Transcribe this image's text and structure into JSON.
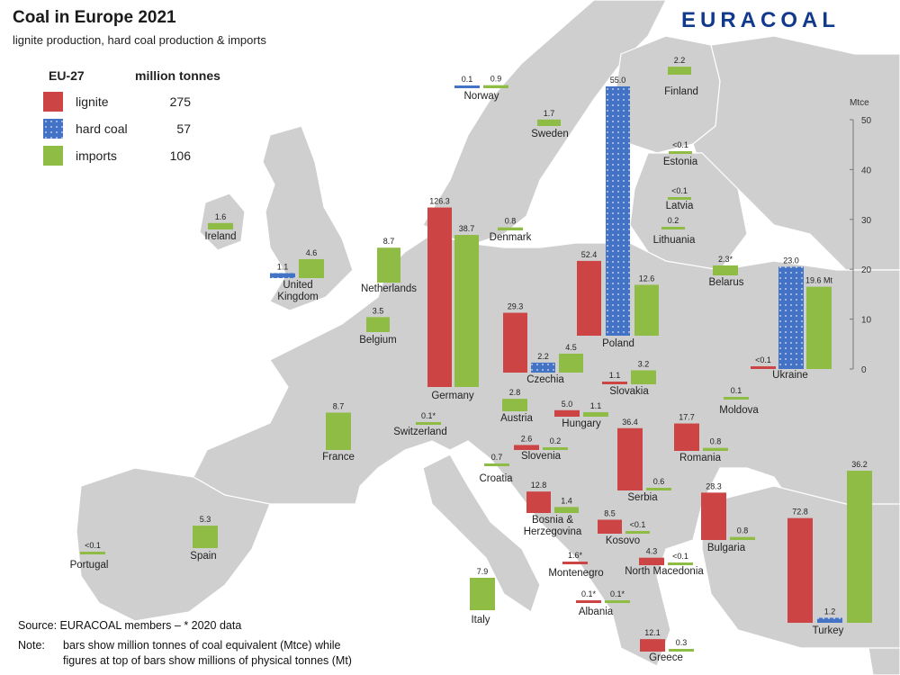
{
  "title": "Coal in Europe 2021",
  "subtitle": "lignite production, hard coal production & imports",
  "brand": "EURACOAL",
  "legend": {
    "region": "EU-27",
    "unit": "million tonnes",
    "items": [
      {
        "label": "lignite",
        "value": "275",
        "color": "#cc4444"
      },
      {
        "label": "hard coal",
        "value": "57",
        "color": "#4472c4"
      },
      {
        "label": "imports",
        "value": "106",
        "color": "#8fbc45"
      }
    ]
  },
  "scale": {
    "unit": "Mtce",
    "ticks": [
      0,
      10,
      20,
      30,
      40,
      50
    ],
    "max": 50
  },
  "colors": {
    "lignite": "#cc4444",
    "hard_coal": "#4472c4",
    "imports": "#8fbc45",
    "land": "#cfcfcf",
    "sea": "#ffffff"
  },
  "source": "Source: EURACOAL members  –  * 2020 data",
  "note_label": "Note:",
  "note_text_1": "bars show million tonnes of coal equivalent (Mtce) while",
  "note_text_2": "figures at top of bars show millions of physical tonnes (Mt)",
  "chart_data": {
    "type": "bar",
    "unit": "Mtce",
    "ylim": [
      0,
      50
    ],
    "countries": [
      {
        "name": [
          "Norway"
        ],
        "bars": [
          {
            "type": "hard_coal",
            "label": "0.1",
            "value": 0.1
          },
          {
            "type": "imports",
            "label": "0.9",
            "value": 0.6
          }
        ]
      },
      {
        "name": [
          "Finland"
        ],
        "bars": [
          {
            "type": "imports",
            "label": "2.2",
            "value": 1.6
          }
        ]
      },
      {
        "name": [
          "Sweden"
        ],
        "bars": [
          {
            "type": "imports",
            "label": "1.7",
            "value": 1.3
          }
        ]
      },
      {
        "name": [
          "Estonia"
        ],
        "bars": [
          {
            "type": "imports",
            "label": "<0.1",
            "value": 0.05
          }
        ]
      },
      {
        "name": [
          "Latvia"
        ],
        "bars": [
          {
            "type": "imports",
            "label": "<0.1",
            "value": 0.05
          }
        ]
      },
      {
        "name": [
          "Lithuania"
        ],
        "bars": [
          {
            "type": "imports",
            "label": "0.2",
            "value": 0.1
          }
        ]
      },
      {
        "name": [
          "Denmark"
        ],
        "bars": [
          {
            "type": "imports",
            "label": "0.8",
            "value": 0.6
          }
        ]
      },
      {
        "name": [
          "Ireland"
        ],
        "bars": [
          {
            "type": "imports",
            "label": "1.6",
            "value": 1.3
          }
        ]
      },
      {
        "name": [
          "United",
          "Kingdom"
        ],
        "bars": [
          {
            "type": "hard_coal",
            "label": "1.1",
            "value": 1.0
          },
          {
            "type": "imports",
            "label": "4.6",
            "value": 3.8
          }
        ]
      },
      {
        "name": [
          "Netherlands"
        ],
        "bars": [
          {
            "type": "imports",
            "label": "8.7",
            "value": 7.0
          }
        ]
      },
      {
        "name": [
          "Belgium"
        ],
        "bars": [
          {
            "type": "imports",
            "label": "3.5",
            "value": 3.0
          }
        ]
      },
      {
        "name": [
          "Germany"
        ],
        "bars": [
          {
            "type": "lignite",
            "label": "126.3",
            "value": 36.0
          },
          {
            "type": "imports",
            "label": "38.7",
            "value": 30.5
          }
        ]
      },
      {
        "name": [
          "Poland"
        ],
        "bars": [
          {
            "type": "lignite",
            "label": "52.4",
            "value": 15.0
          },
          {
            "type": "hard_coal",
            "label": "55.0",
            "value": 50.0
          },
          {
            "type": "imports",
            "label": "12.6",
            "value": 10.2
          }
        ]
      },
      {
        "name": [
          "Belarus"
        ],
        "bars": [
          {
            "type": "imports",
            "label": "2.3*",
            "value": 2.0
          }
        ]
      },
      {
        "name": [
          "Ukraine"
        ],
        "bars": [
          {
            "type": "lignite",
            "label": "<0.1",
            "value": 0.05
          },
          {
            "type": "hard_coal",
            "label": "23.0",
            "value": 20.5
          },
          {
            "type": "imports",
            "label": "19.6 Mt",
            "value": 16.5
          }
        ]
      },
      {
        "name": [
          "Czechia"
        ],
        "bars": [
          {
            "type": "lignite",
            "label": "29.3",
            "value": 12.0
          },
          {
            "type": "hard_coal",
            "label": "2.2",
            "value": 2.0
          },
          {
            "type": "imports",
            "label": "4.5",
            "value": 3.8
          }
        ]
      },
      {
        "name": [
          "Slovakia"
        ],
        "bars": [
          {
            "type": "lignite",
            "label": "1.1",
            "value": 0.4
          },
          {
            "type": "imports",
            "label": "3.2",
            "value": 2.8
          }
        ]
      },
      {
        "name": [
          "France"
        ],
        "bars": [
          {
            "type": "imports",
            "label": "8.7",
            "value": 7.5
          }
        ]
      },
      {
        "name": [
          "Switzerland"
        ],
        "bars": [
          {
            "type": "imports",
            "label": "0.1*",
            "value": 0.1
          }
        ]
      },
      {
        "name": [
          "Austria"
        ],
        "bars": [
          {
            "type": "imports",
            "label": "2.8",
            "value": 2.5
          }
        ]
      },
      {
        "name": [
          "Hungary"
        ],
        "bars": [
          {
            "type": "lignite",
            "label": "5.0",
            "value": 1.3
          },
          {
            "type": "imports",
            "label": "1.1",
            "value": 0.9
          }
        ]
      },
      {
        "name": [
          "Moldova"
        ],
        "bars": [
          {
            "type": "imports",
            "label": "0.1",
            "value": 0.05
          }
        ]
      },
      {
        "name": [
          "Romania"
        ],
        "bars": [
          {
            "type": "lignite",
            "label": "17.7",
            "value": 5.5
          },
          {
            "type": "imports",
            "label": "0.8",
            "value": 0.6
          }
        ]
      },
      {
        "name": [
          "Slovenia"
        ],
        "bars": [
          {
            "type": "lignite",
            "label": "2.6",
            "value": 1.0
          },
          {
            "type": "imports",
            "label": "0.2",
            "value": 0.1
          }
        ]
      },
      {
        "name": [
          "Croatia"
        ],
        "bars": [
          {
            "type": "imports",
            "label": "0.7",
            "value": 0.4
          }
        ]
      },
      {
        "name": [
          "Serbia"
        ],
        "bars": [
          {
            "type": "lignite",
            "label": "36.4",
            "value": 12.5
          },
          {
            "type": "imports",
            "label": "0.6",
            "value": 0.5
          }
        ]
      },
      {
        "name": [
          "Bosnia &",
          "Herzegovina"
        ],
        "bars": [
          {
            "type": "lignite",
            "label": "12.8",
            "value": 4.3
          },
          {
            "type": "imports",
            "label": "1.4",
            "value": 1.2
          }
        ]
      },
      {
        "name": [
          "Kosovo"
        ],
        "bars": [
          {
            "type": "lignite",
            "label": "8.5",
            "value": 2.8
          },
          {
            "type": "imports",
            "label": "<0.1",
            "value": 0.05
          }
        ]
      },
      {
        "name": [
          "Bulgaria"
        ],
        "bars": [
          {
            "type": "lignite",
            "label": "28.3",
            "value": 9.5
          },
          {
            "type": "imports",
            "label": "0.8",
            "value": 0.6
          }
        ]
      },
      {
        "name": [
          "Spain"
        ],
        "bars": [
          {
            "type": "imports",
            "label": "5.3",
            "value": 4.5
          }
        ]
      },
      {
        "name": [
          "Portugal"
        ],
        "bars": [
          {
            "type": "imports",
            "label": "<0.1",
            "value": 0.05
          }
        ]
      },
      {
        "name": [
          "Montenegro"
        ],
        "bars": [
          {
            "type": "lignite",
            "label": "1.6*",
            "value": 0.5
          }
        ]
      },
      {
        "name": [
          "North Macedonia"
        ],
        "bars": [
          {
            "type": "lignite",
            "label": "4.3",
            "value": 1.5
          },
          {
            "type": "imports",
            "label": "<0.1",
            "value": 0.05
          }
        ]
      },
      {
        "name": [
          "Italy"
        ],
        "bars": [
          {
            "type": "imports",
            "label": "7.9",
            "value": 6.5
          }
        ]
      },
      {
        "name": [
          "Albania"
        ],
        "bars": [
          {
            "type": "lignite",
            "label": "0.1*",
            "value": 0.05
          },
          {
            "type": "imports",
            "label": "0.1*",
            "value": 0.05
          }
        ]
      },
      {
        "name": [
          "Greece"
        ],
        "bars": [
          {
            "type": "lignite",
            "label": "12.1",
            "value": 2.5
          },
          {
            "type": "imports",
            "label": "0.3",
            "value": 0.2
          }
        ]
      },
      {
        "name": [
          "Turkey"
        ],
        "bars": [
          {
            "type": "lignite",
            "label": "72.8",
            "value": 21.0
          },
          {
            "type": "hard_coal",
            "label": "1.2",
            "value": 1.0
          },
          {
            "type": "imports",
            "label": "36.2",
            "value": 30.5
          }
        ]
      }
    ]
  }
}
